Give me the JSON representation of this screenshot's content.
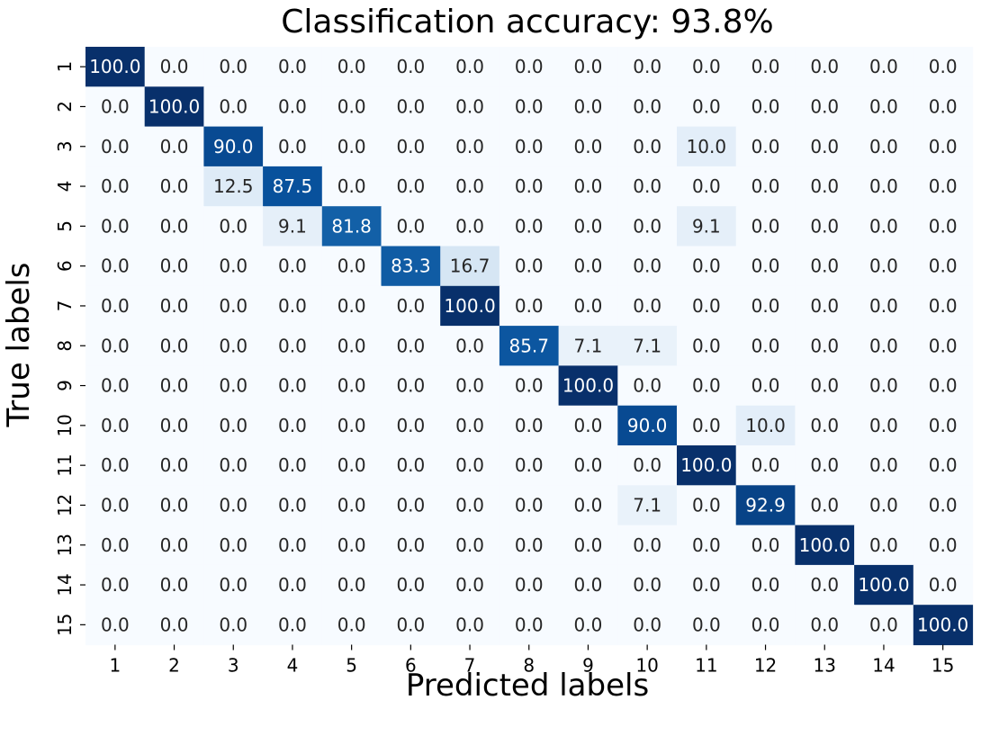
{
  "chart_data": {
    "type": "heatmap",
    "title": "Classification accuracy: 93.8%",
    "xlabel": "Predicted labels",
    "ylabel": "True labels",
    "x_categories": [
      "1",
      "2",
      "3",
      "4",
      "5",
      "6",
      "7",
      "8",
      "9",
      "10",
      "11",
      "12",
      "13",
      "14",
      "15"
    ],
    "y_categories": [
      "1",
      "2",
      "3",
      "4",
      "5",
      "6",
      "7",
      "8",
      "9",
      "10",
      "11",
      "12",
      "13",
      "14",
      "15"
    ],
    "matrix": [
      [
        100.0,
        0.0,
        0.0,
        0.0,
        0.0,
        0.0,
        0.0,
        0.0,
        0.0,
        0.0,
        0.0,
        0.0,
        0.0,
        0.0,
        0.0
      ],
      [
        0.0,
        100.0,
        0.0,
        0.0,
        0.0,
        0.0,
        0.0,
        0.0,
        0.0,
        0.0,
        0.0,
        0.0,
        0.0,
        0.0,
        0.0
      ],
      [
        0.0,
        0.0,
        90.0,
        0.0,
        0.0,
        0.0,
        0.0,
        0.0,
        0.0,
        0.0,
        10.0,
        0.0,
        0.0,
        0.0,
        0.0
      ],
      [
        0.0,
        0.0,
        12.5,
        87.5,
        0.0,
        0.0,
        0.0,
        0.0,
        0.0,
        0.0,
        0.0,
        0.0,
        0.0,
        0.0,
        0.0
      ],
      [
        0.0,
        0.0,
        0.0,
        9.1,
        81.8,
        0.0,
        0.0,
        0.0,
        0.0,
        0.0,
        9.1,
        0.0,
        0.0,
        0.0,
        0.0
      ],
      [
        0.0,
        0.0,
        0.0,
        0.0,
        0.0,
        83.3,
        16.7,
        0.0,
        0.0,
        0.0,
        0.0,
        0.0,
        0.0,
        0.0,
        0.0
      ],
      [
        0.0,
        0.0,
        0.0,
        0.0,
        0.0,
        0.0,
        100.0,
        0.0,
        0.0,
        0.0,
        0.0,
        0.0,
        0.0,
        0.0,
        0.0
      ],
      [
        0.0,
        0.0,
        0.0,
        0.0,
        0.0,
        0.0,
        0.0,
        85.7,
        7.1,
        7.1,
        0.0,
        0.0,
        0.0,
        0.0,
        0.0
      ],
      [
        0.0,
        0.0,
        0.0,
        0.0,
        0.0,
        0.0,
        0.0,
        0.0,
        100.0,
        0.0,
        0.0,
        0.0,
        0.0,
        0.0,
        0.0
      ],
      [
        0.0,
        0.0,
        0.0,
        0.0,
        0.0,
        0.0,
        0.0,
        0.0,
        0.0,
        90.0,
        0.0,
        10.0,
        0.0,
        0.0,
        0.0
      ],
      [
        0.0,
        0.0,
        0.0,
        0.0,
        0.0,
        0.0,
        0.0,
        0.0,
        0.0,
        0.0,
        100.0,
        0.0,
        0.0,
        0.0,
        0.0
      ],
      [
        0.0,
        0.0,
        0.0,
        0.0,
        0.0,
        0.0,
        0.0,
        0.0,
        0.0,
        7.1,
        0.0,
        92.9,
        0.0,
        0.0,
        0.0
      ],
      [
        0.0,
        0.0,
        0.0,
        0.0,
        0.0,
        0.0,
        0.0,
        0.0,
        0.0,
        0.0,
        0.0,
        0.0,
        100.0,
        0.0,
        0.0
      ],
      [
        0.0,
        0.0,
        0.0,
        0.0,
        0.0,
        0.0,
        0.0,
        0.0,
        0.0,
        0.0,
        0.0,
        0.0,
        0.0,
        100.0,
        0.0
      ],
      [
        0.0,
        0.0,
        0.0,
        0.0,
        0.0,
        0.0,
        0.0,
        0.0,
        0.0,
        0.0,
        0.0,
        0.0,
        0.0,
        0.0,
        100.0
      ]
    ],
    "value_range": [
      0,
      100
    ],
    "colormap": "Blues",
    "colors": {
      "low": "#f7fbff",
      "high": "#08306b",
      "text_dark": "#262626",
      "text_light": "#ffffff"
    },
    "grid": false,
    "legend": "none"
  }
}
